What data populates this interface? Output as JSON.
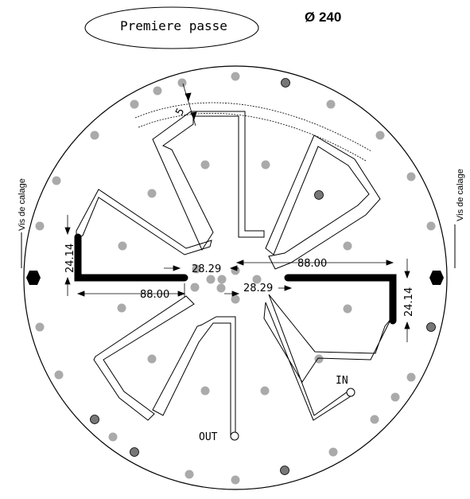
{
  "title": "Premiere passe",
  "diameter": "Ø 240",
  "side_label": "Vis de calage",
  "ports": {
    "in": "IN",
    "out": "OUT"
  },
  "dims": {
    "d88": "88.00",
    "d2829": "28.29",
    "d2414": "24.14",
    "d5": "5"
  },
  "colors": {
    "trace": "#000000",
    "hole_fill": "#aaaaaa",
    "dark_hole_fill": "#777777"
  }
}
